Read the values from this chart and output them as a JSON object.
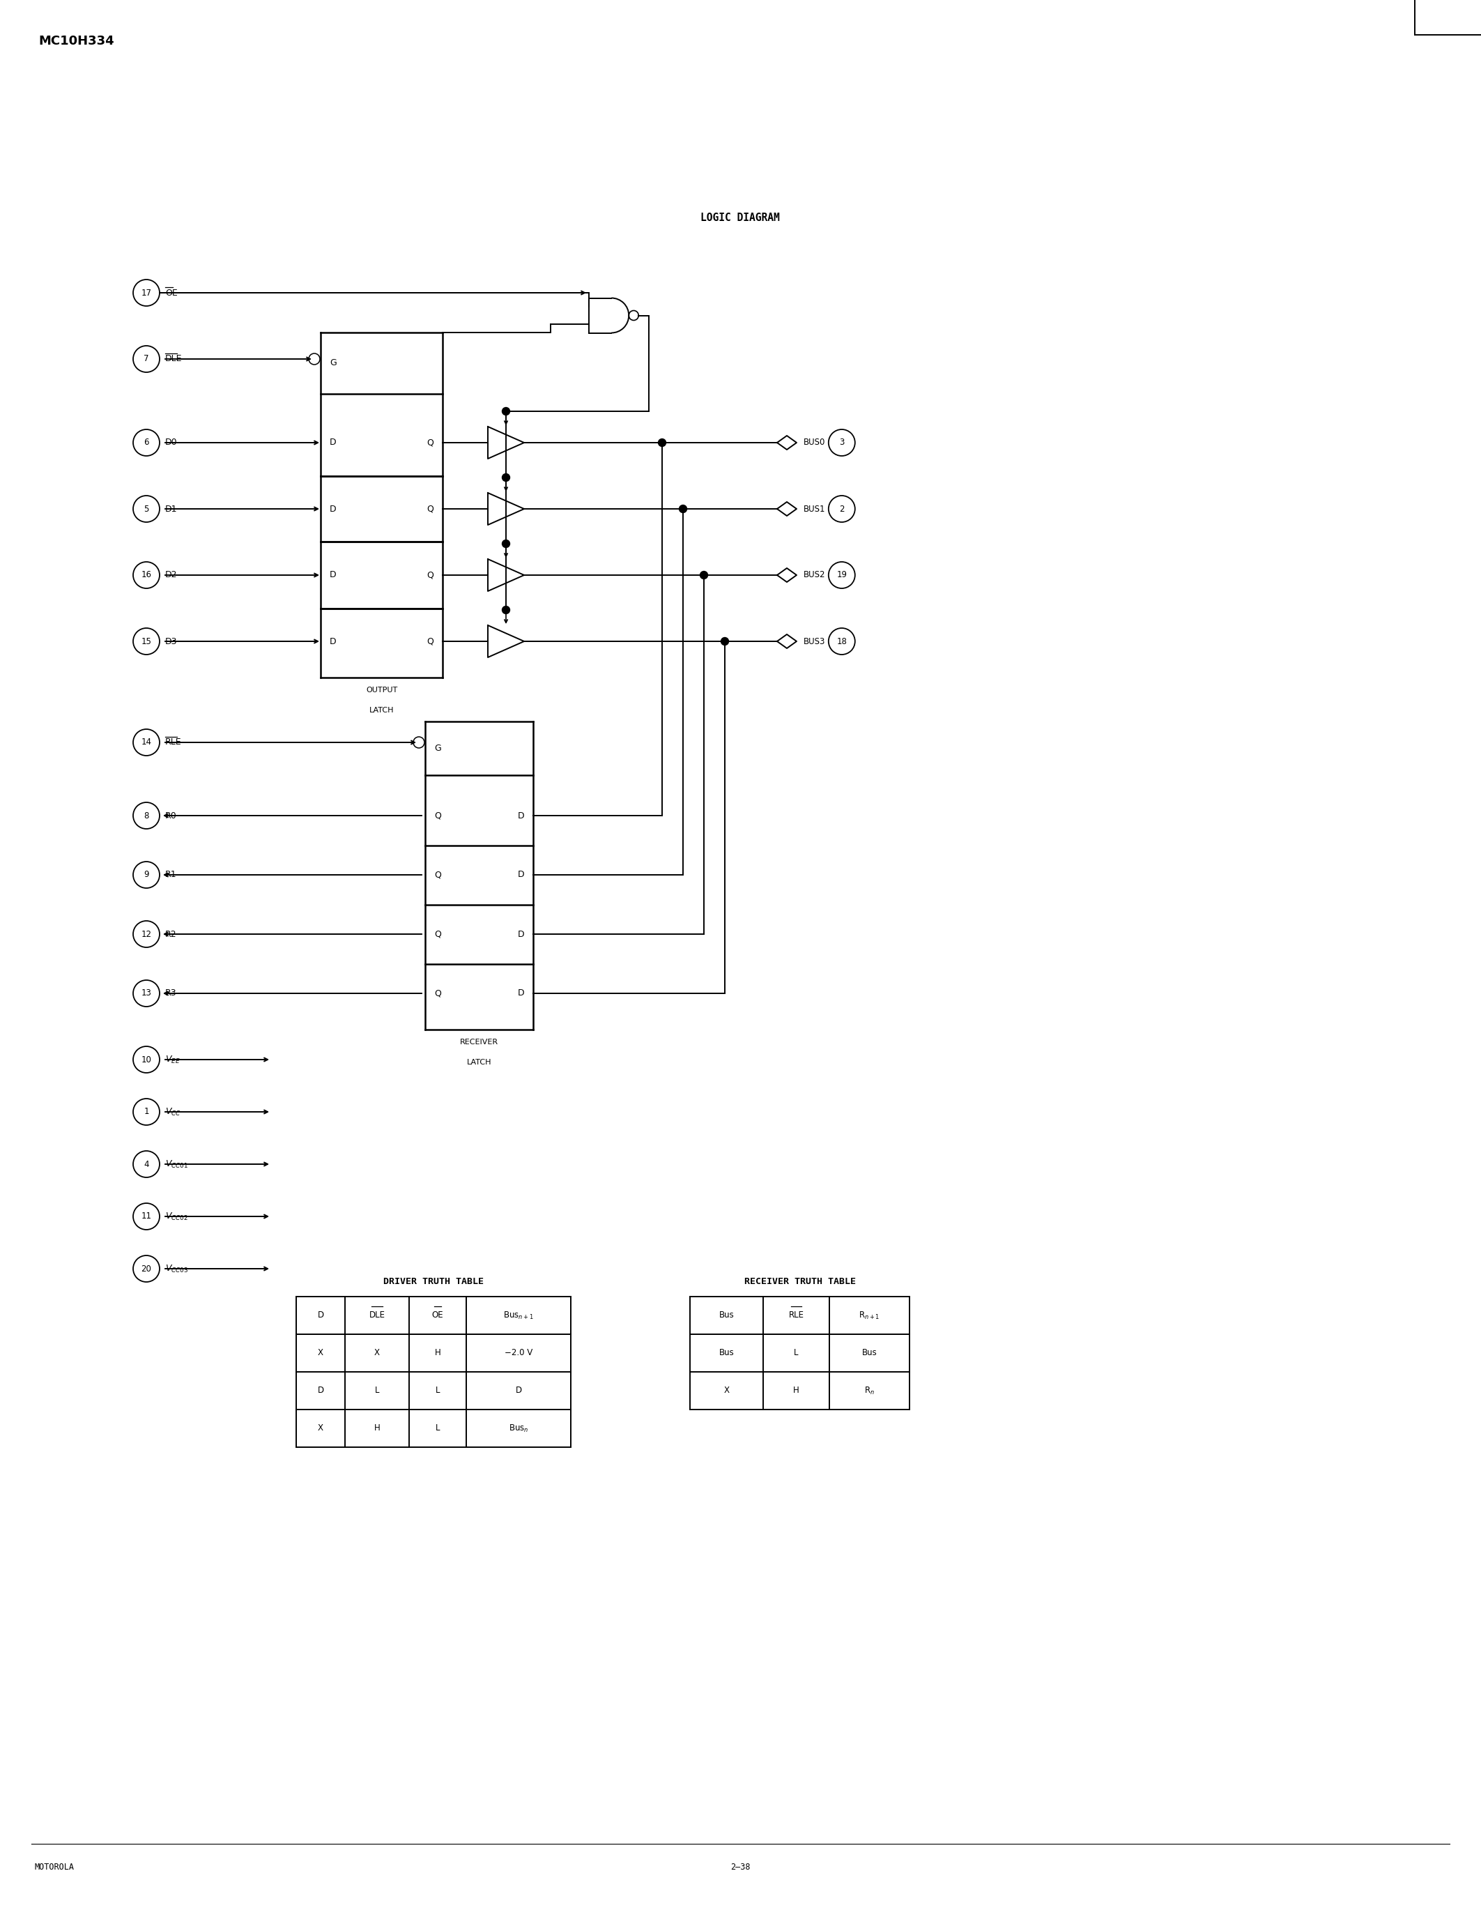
{
  "page_title": "MC10H334",
  "diagram_title": "LOGIC DIAGRAM",
  "footer_left": "MOTOROLA",
  "footer_center": "2–38",
  "bg_color": "#ffffff",
  "left_pins_input": [
    {
      "num": "17",
      "label": "OE",
      "overbar": true
    },
    {
      "num": "7",
      "label": "DLE",
      "overbar": true
    },
    {
      "num": "6",
      "label": "D0",
      "overbar": false
    },
    {
      "num": "5",
      "label": "D1",
      "overbar": false
    },
    {
      "num": "16",
      "label": "D2",
      "overbar": false
    },
    {
      "num": "15",
      "label": "D3",
      "overbar": false
    }
  ],
  "left_pins_recv": [
    {
      "num": "14",
      "label": "RLE",
      "overbar": true
    },
    {
      "num": "8",
      "label": "R0",
      "overbar": false
    },
    {
      "num": "9",
      "label": "R1",
      "overbar": false
    },
    {
      "num": "12",
      "label": "R2",
      "overbar": false
    },
    {
      "num": "13",
      "label": "R3",
      "overbar": false
    }
  ],
  "left_pins_pwr": [
    {
      "num": "10",
      "label": "VEE",
      "latex": "V_{EE}"
    },
    {
      "num": "1",
      "label": "VCC",
      "latex": "V_{CC}"
    },
    {
      "num": "4",
      "label": "VCC01",
      "latex": "V_{CC01}"
    },
    {
      "num": "11",
      "label": "VCC02",
      "latex": "V_{CC02}"
    },
    {
      "num": "20",
      "label": "VCC03",
      "latex": "V_{CC03}"
    }
  ],
  "right_pins": [
    {
      "num": "3",
      "label": "BUS0"
    },
    {
      "num": "2",
      "label": "BUS1"
    },
    {
      "num": "19",
      "label": "BUS2"
    },
    {
      "num": "18",
      "label": "BUS3"
    }
  ],
  "driver_table_title": "DRIVER TRUTH TABLE",
  "driver_table_headers": [
    "D",
    "DLE",
    "OE",
    "Bus_{n+1}"
  ],
  "driver_table_overbars": [
    false,
    true,
    true,
    false
  ],
  "driver_table_rows": [
    [
      "X",
      "X",
      "H",
      "−2.0 V"
    ],
    [
      "D",
      "L",
      "L",
      "D"
    ],
    [
      "X",
      "H",
      "L",
      "Bus_n"
    ]
  ],
  "receiver_table_title": "RECEIVER TRUTH TABLE",
  "receiver_table_headers": [
    "Bus",
    "RLE",
    "R_{n+1}"
  ],
  "receiver_table_overbars": [
    false,
    true,
    false
  ],
  "receiver_table_rows": [
    [
      "Bus",
      "L",
      "Bus"
    ],
    [
      "X",
      "H",
      "R_n"
    ]
  ]
}
